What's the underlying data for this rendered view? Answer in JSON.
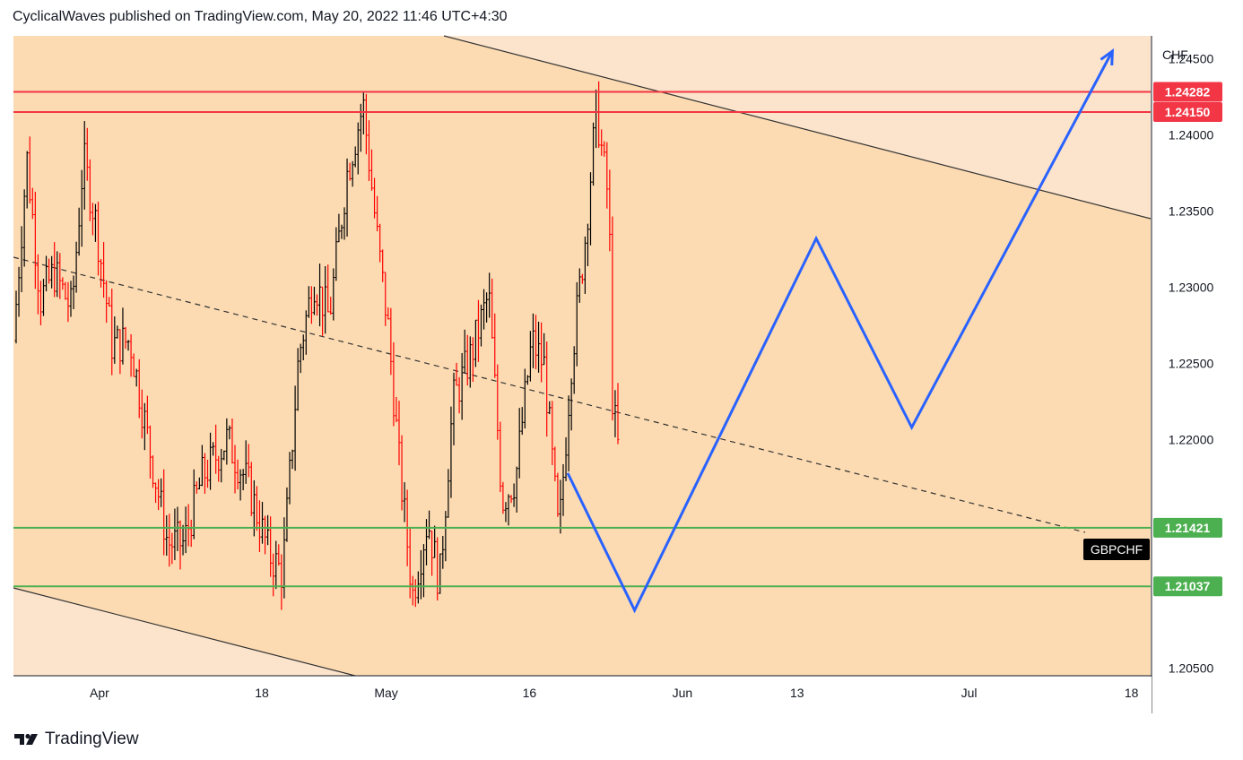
{
  "header": {
    "attribution": "CyclicalWaves published on TradingView.com, May 20, 2022 11:46 UTC+4:30"
  },
  "footer": {
    "brand": "TradingView",
    "logo_icon": "tradingview-logo-icon"
  },
  "chart_data": {
    "type": "candlestick",
    "symbol": "GBPCHF",
    "currency": "CHF",
    "y_axis": {
      "ylim": [
        1.2045,
        1.2465
      ],
      "tick_labels": [
        "1.24500",
        "1.24000",
        "1.23500",
        "1.23000",
        "1.22500",
        "1.22000",
        "1.20500"
      ]
    },
    "x_axis": {
      "tick_labels": [
        "Apr",
        "18",
        "May",
        "16",
        "Jun",
        "13",
        "Jul",
        "18"
      ]
    },
    "price_tags": [
      {
        "label": "1.24282",
        "value": 1.24282,
        "color": "#f23645"
      },
      {
        "label": "1.24150",
        "value": 1.2415,
        "color": "#f23645"
      },
      {
        "label": "1.21421",
        "value": 1.21421,
        "color": "#4caf50"
      },
      {
        "label": "1.21037",
        "value": 1.21037,
        "color": "#4caf50"
      }
    ],
    "symbol_tag": "GBPCHF",
    "resistance_lines": [
      1.24282,
      1.2415
    ],
    "support_lines": [
      1.21421,
      1.21037
    ],
    "colors": {
      "up_bar": "#000000",
      "down_bar": "#ff0000",
      "channel_fill": "#fcdbb2",
      "outer_fill": "#fce4cc",
      "projection": "#2962ff",
      "resistance": "#f23645",
      "support": "#4caf50"
    },
    "projection_path": [
      {
        "x": "2022-05-20",
        "y": 1.2178
      },
      {
        "x": "2022-05-27",
        "y": 1.2088
      },
      {
        "x": "2022-06-15",
        "y": 1.2332
      },
      {
        "x": "2022-06-25",
        "y": 1.2208
      },
      {
        "x": "2022-07-16",
        "y": 1.2455
      }
    ]
  }
}
